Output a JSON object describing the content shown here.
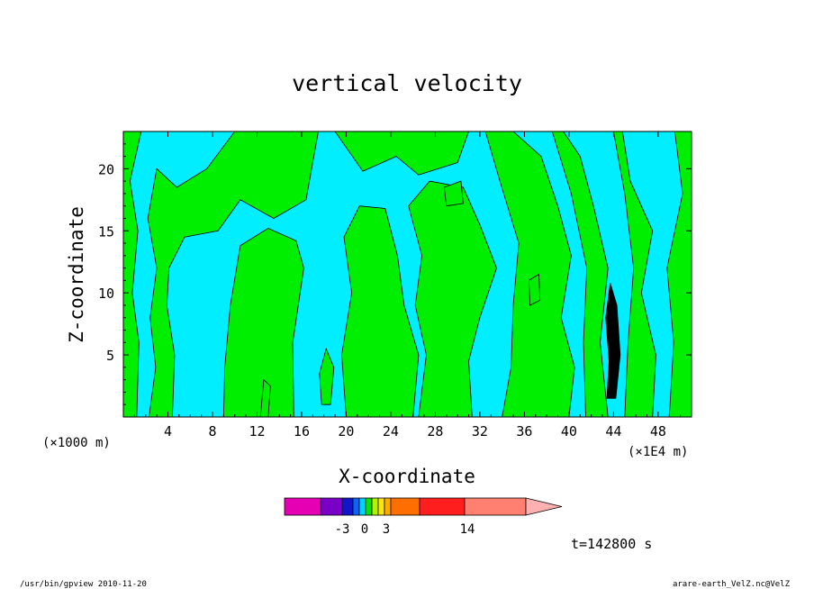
{
  "chart_data": {
    "type": "heatmap",
    "title": "vertical velocity",
    "xlabel": "X-coordinate",
    "ylabel": "Z-coordinate",
    "x_unit_left": "(×1000 m)",
    "x_unit_right": "(×1E4 m)",
    "x_ticks": [
      4,
      8,
      12,
      16,
      20,
      24,
      28,
      32,
      36,
      40,
      44,
      48
    ],
    "y_ticks": [
      5,
      10,
      15,
      20
    ],
    "xlim": [
      0,
      51
    ],
    "ylim": [
      0,
      23
    ],
    "colorbar": {
      "colors": [
        "#e600b4",
        "#7a00c8",
        "#1414c8",
        "#0a64ff",
        "#00d2ff",
        "#00e600",
        "#b4f000",
        "#ffe600",
        "#ffaa00",
        "#ff6e00",
        "#ff1e1e",
        "#ff8070",
        "#ffb0b0"
      ],
      "tick_labels": [
        "-3",
        "0",
        "3",
        "14"
      ],
      "extend": "max"
    },
    "fill_colors": {
      "positive": "#00ee00",
      "negative": "#00eeff",
      "strong": "#000000"
    },
    "time_label": "t=142800 s",
    "footer_left": "/usr/bin/gpview   2010-11-20",
    "footer_right": "arare-earth_VelZ.nc@VelZ"
  }
}
